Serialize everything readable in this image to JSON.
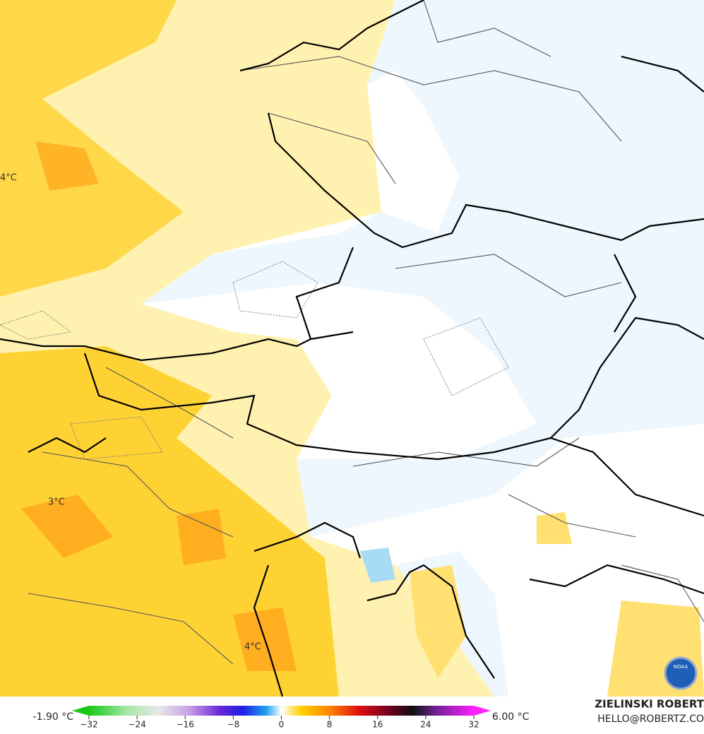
{
  "map_labels": [
    "4°C",
    "3°C",
    "4°C"
  ],
  "colorbar": {
    "min_label": "-1.90 °C",
    "max_label": "6.00 °C",
    "ticks": [
      {
        "value": -32,
        "label": "−32"
      },
      {
        "value": -24,
        "label": "−24"
      },
      {
        "value": -16,
        "label": "−16"
      },
      {
        "value": -8,
        "label": "−8"
      },
      0,
      8,
      16,
      24,
      32
    ],
    "range": [
      -32,
      32
    ]
  },
  "credits": {
    "author": "ZIELINSKI ROBERT",
    "email": "HELLO@ROBERTZ.CO",
    "logo": "NOAA"
  }
}
